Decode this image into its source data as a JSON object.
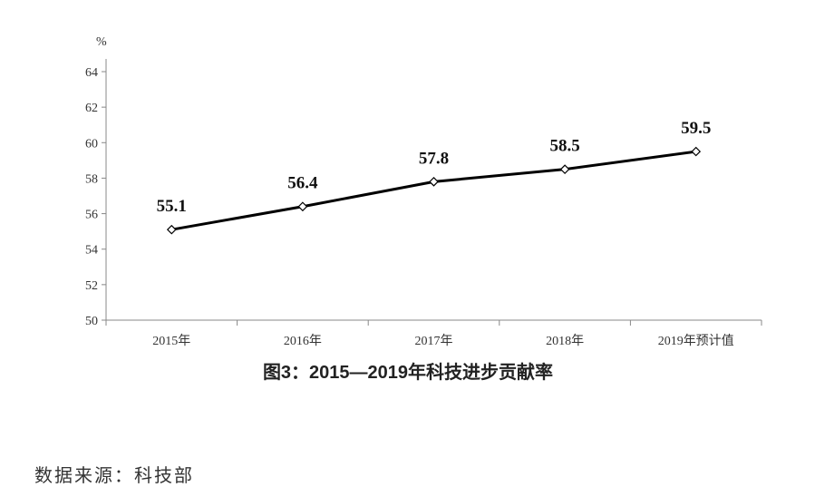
{
  "chart_data": {
    "type": "line",
    "title": "图3：2015—2019年科技进步贡献率",
    "ylabel": "%",
    "xlabel": "",
    "categories": [
      "2015年",
      "2016年",
      "2017年",
      "2018年",
      "2019年预计值"
    ],
    "values": [
      55.1,
      56.4,
      57.8,
      58.5,
      59.5
    ],
    "data_labels": [
      "55.1",
      "56.4",
      "57.8",
      "58.5",
      "59.5"
    ],
    "ylim": [
      50,
      64
    ],
    "yticks": [
      50,
      52,
      54,
      56,
      58,
      60,
      62,
      64
    ],
    "grid": false,
    "legend": "none",
    "line_color": "#000000",
    "marker": "hollow-diamond"
  },
  "source": "数据来源：科技部"
}
